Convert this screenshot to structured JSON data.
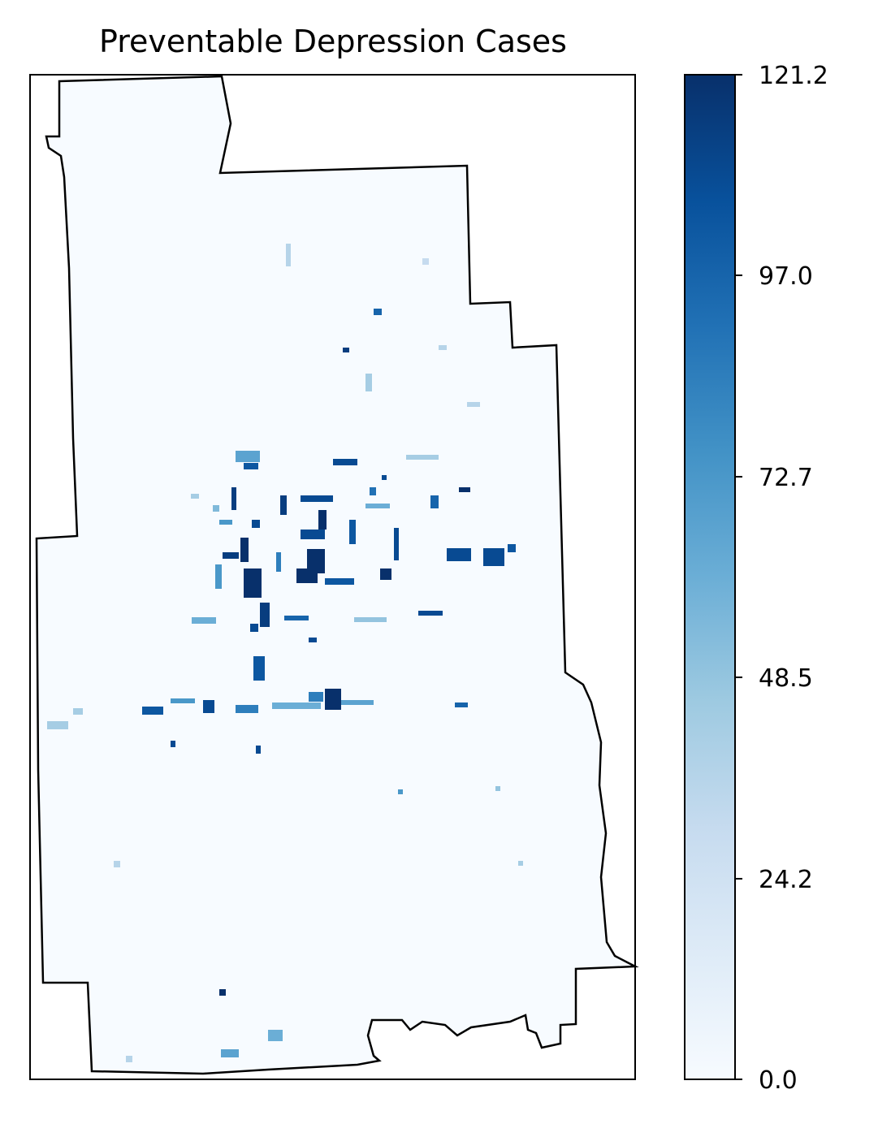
{
  "chart_data": {
    "type": "heatmap",
    "title": "Preventable Depression Cases",
    "xlabel": "",
    "ylabel": "",
    "colormap": "Blues",
    "colorbar": {
      "min": 0.0,
      "max": 121.2,
      "ticks": [
        0.0,
        24.2,
        48.5,
        72.7,
        97.0,
        121.2
      ],
      "tick_labels": [
        "0.0",
        "24.2",
        "48.5",
        "72.7",
        "97.0",
        "121.2"
      ],
      "colors": [
        "#f7fbff",
        "#deebf7",
        "#c6dbef",
        "#9ecae1",
        "#6baed6",
        "#4292c6",
        "#2171b5",
        "#08519c",
        "#08306b"
      ]
    },
    "boundary_color": "#000000",
    "background_value_color": "#f7fbff"
  }
}
